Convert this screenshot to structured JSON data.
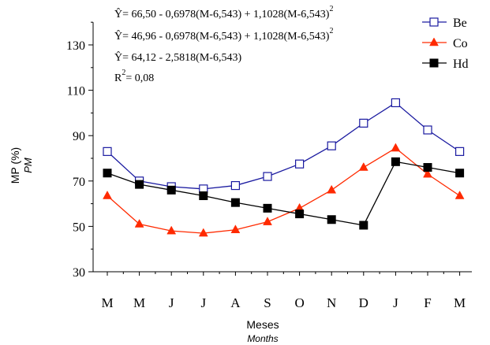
{
  "chart_data": {
    "type": "line",
    "categories": [
      "M",
      "M",
      "J",
      "J",
      "A",
      "S",
      "O",
      "N",
      "D",
      "J",
      "F",
      "M"
    ],
    "ylabel": "MP (%)",
    "ylabel_sub": "PM",
    "xlabel": "Meses",
    "xlabel_sub": "Months",
    "ylim": [
      30,
      140
    ],
    "yticks": [
      30,
      50,
      70,
      90,
      110,
      130
    ],
    "grid": false,
    "legend_position": "top-right",
    "series": [
      {
        "name": "Be",
        "marker": "open-square",
        "color": "#1a1aa0",
        "values": [
          83,
          70,
          67.5,
          66.5,
          68,
          72,
          77.5,
          85.5,
          95.5,
          104.5,
          92.5,
          83
        ]
      },
      {
        "name": "Co",
        "marker": "triangle",
        "color": "#ff2a00",
        "values": [
          63.5,
          51,
          48,
          47,
          48.5,
          52,
          58,
          66,
          76,
          84.5,
          73,
          63.5
        ]
      },
      {
        "name": "Hd",
        "marker": "filled-square",
        "color": "#000000",
        "values": [
          73.5,
          68.5,
          66,
          63.5,
          60.5,
          58,
          55.5,
          53,
          50.5,
          78.5,
          76,
          73.5
        ],
        "break_after_index": 8
      }
    ],
    "equations": {
      "line1_main": "Ŷ= 66,50 - 0,6978(M-6,543) + 1,1028(M-6,543)",
      "line1_sup": "2",
      "line2_main": "Ŷ= 46,96 - 0,6978(M-6,543) + 1,1028(M-6,543)",
      "line2_sup": "2",
      "line3_main": "Ŷ= 64,12 - 2,5818(M-6,543)",
      "r2_prefix": "R",
      "r2_sup": "2",
      "r2_value": "= 0,08"
    }
  }
}
